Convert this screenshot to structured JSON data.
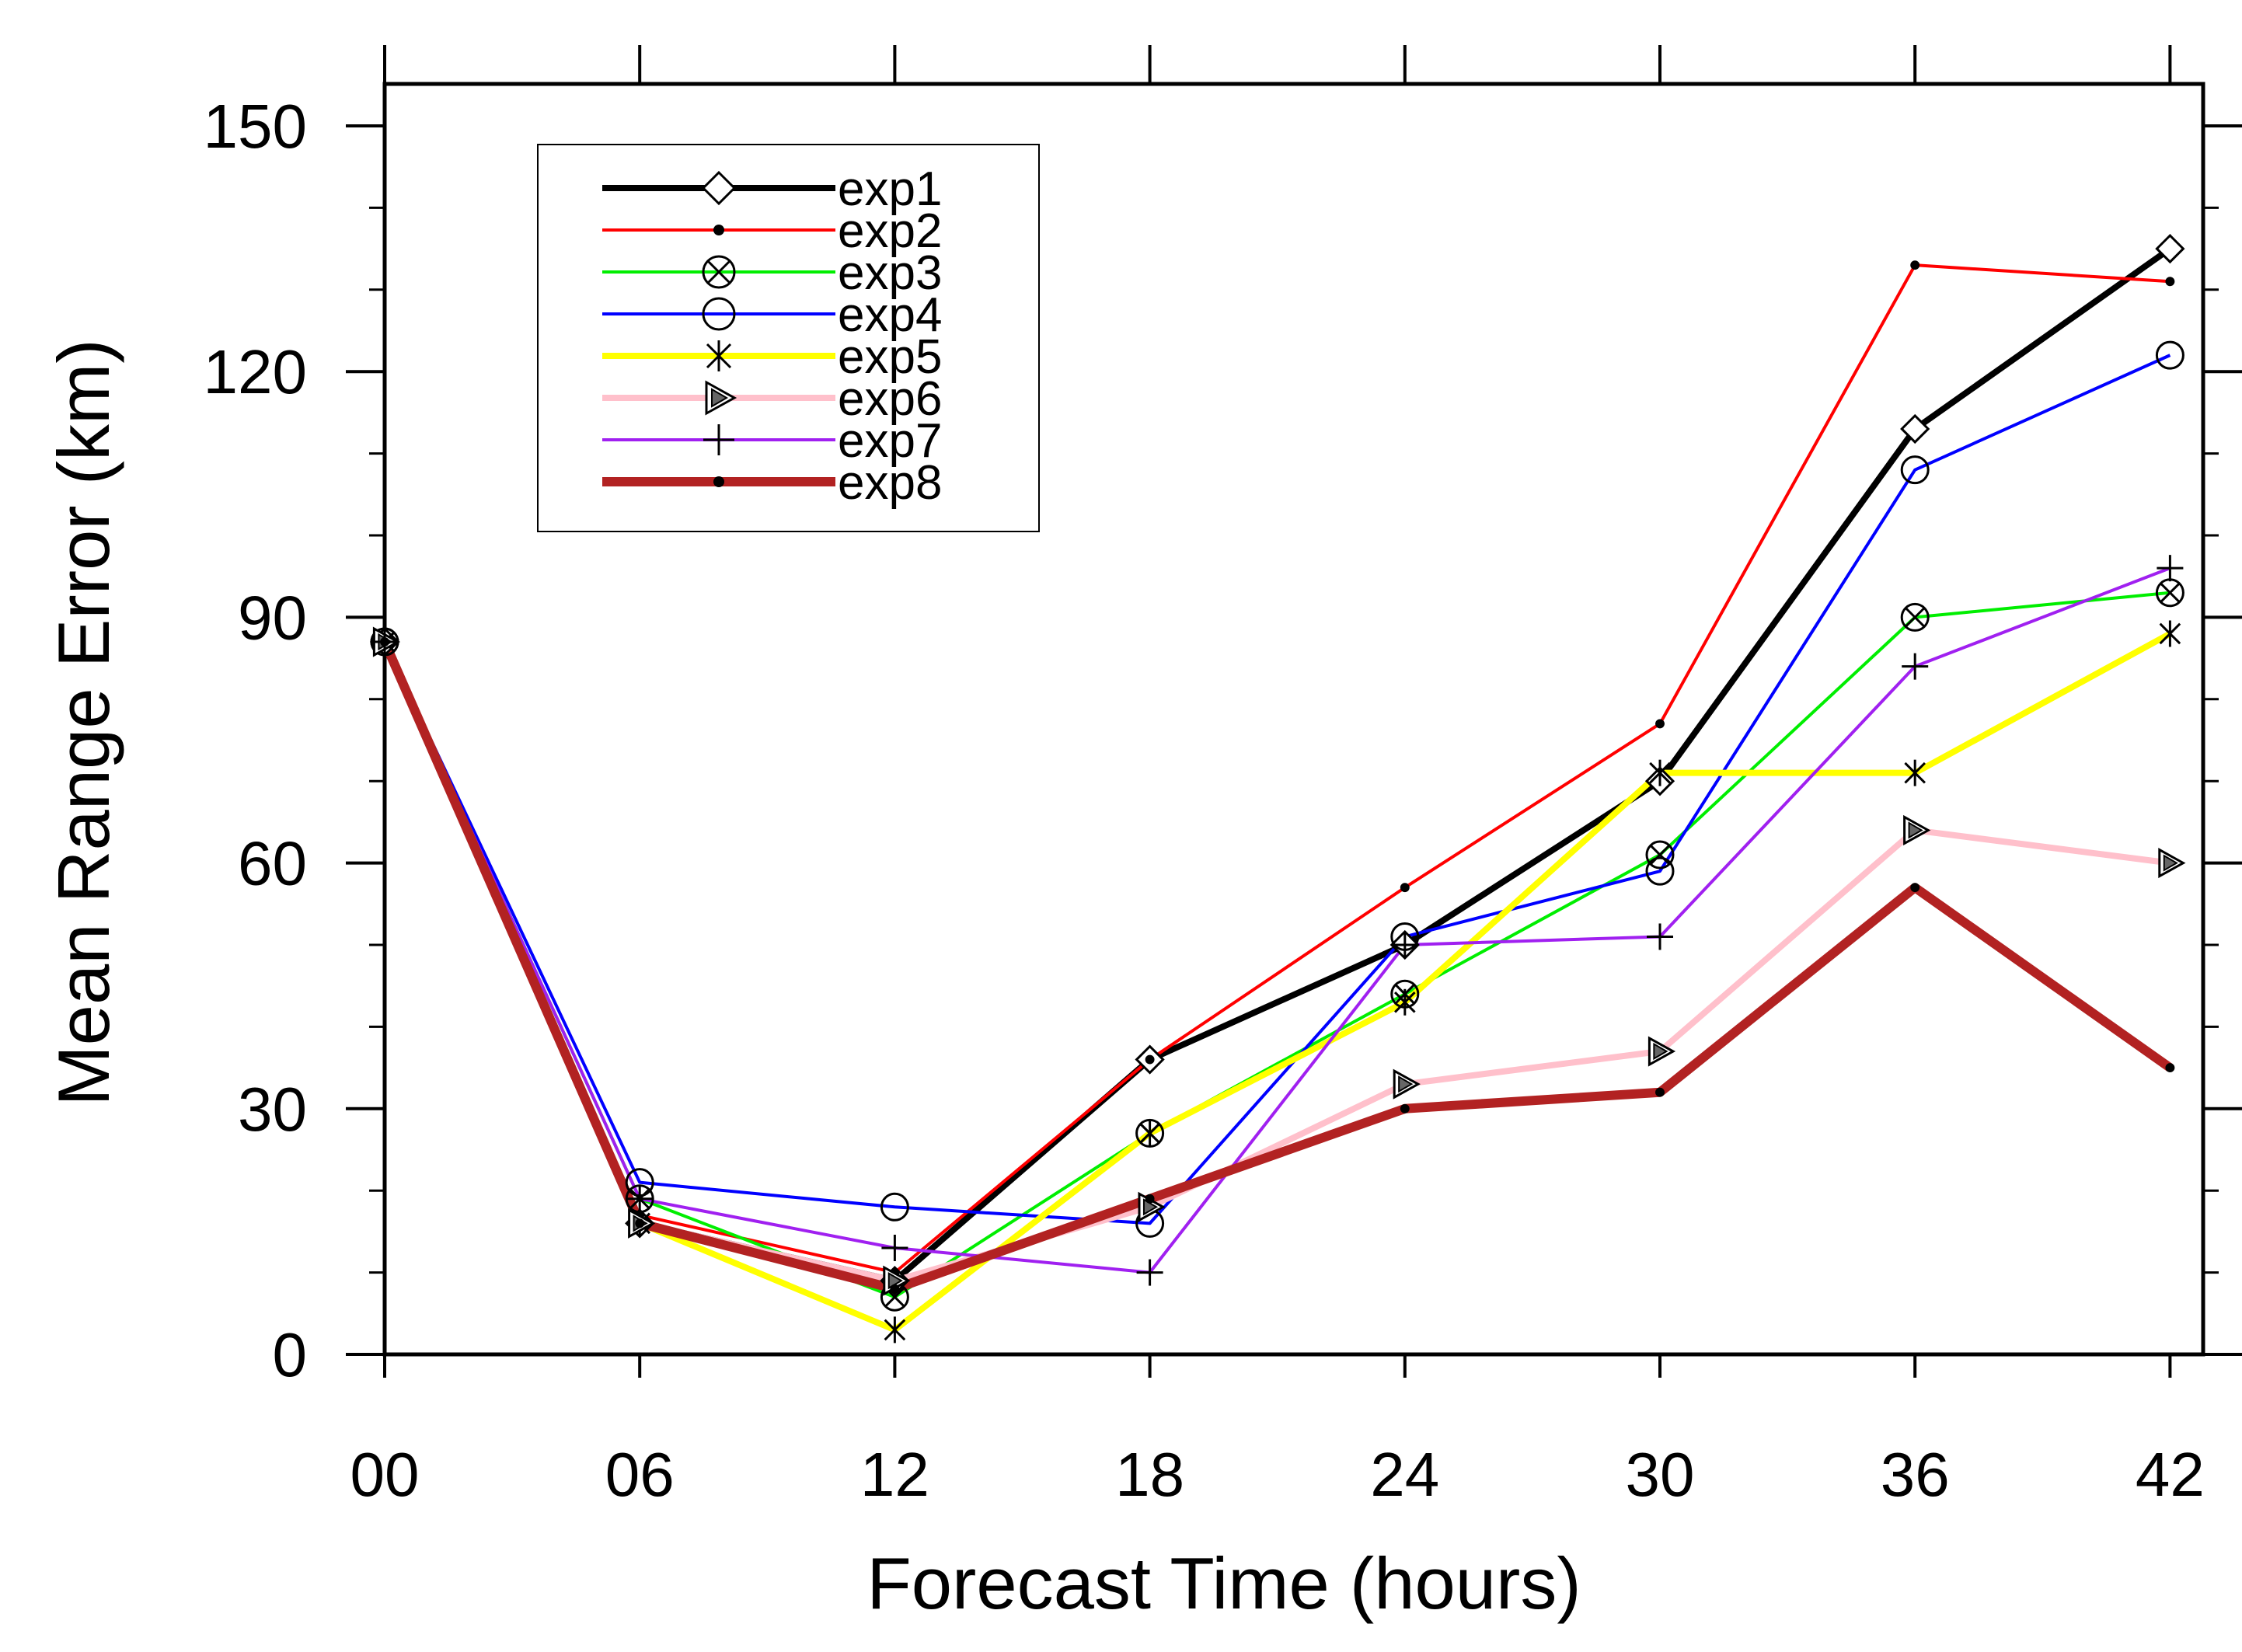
{
  "chart_data": {
    "type": "line",
    "title": "",
    "xlabel": "Forecast Time (hours)",
    "ylabel": "Mean Range Error (km)",
    "x": [
      0,
      6,
      12,
      18,
      24,
      30,
      36,
      42
    ],
    "x_tick_labels": [
      "00",
      "06",
      "12",
      "18",
      "24",
      "30",
      "36",
      "42"
    ],
    "xlim": [
      0,
      43
    ],
    "ylim": [
      0,
      150
    ],
    "y_ticks": [
      0,
      30,
      60,
      90,
      120,
      150
    ],
    "y_tick_labels": [
      "0",
      "30",
      "60",
      "90",
      "120",
      "150"
    ],
    "y_minor_step": 10,
    "grid": false,
    "legend_position": "top-left",
    "series": [
      {
        "name": "exp1",
        "color": "#000000",
        "width": "thick",
        "marker": "diamond",
        "values": [
          87,
          16,
          9,
          36,
          50,
          70,
          113,
          135
        ]
      },
      {
        "name": "exp2",
        "color": "#ff0000",
        "width": "thin",
        "marker": "dot",
        "values": [
          87,
          17,
          10,
          36,
          57,
          77,
          133,
          131
        ]
      },
      {
        "name": "exp3",
        "color": "#00ee00",
        "width": "thin",
        "marker": "circle-x",
        "values": [
          87,
          19,
          7,
          27,
          44,
          61,
          90,
          93
        ]
      },
      {
        "name": "exp4",
        "color": "#0000ff",
        "width": "thin",
        "marker": "circle",
        "values": [
          87,
          21,
          18,
          16,
          51,
          59,
          108,
          122
        ]
      },
      {
        "name": "exp5",
        "color": "#ffff00",
        "width": "thick",
        "marker": "asterisk",
        "values": [
          87,
          16,
          3,
          27,
          43,
          71,
          71,
          88
        ]
      },
      {
        "name": "exp6",
        "color": "#ffc0cb",
        "width": "thick",
        "marker": "triangle",
        "values": [
          87,
          16,
          9,
          18,
          33,
          37,
          64,
          60
        ]
      },
      {
        "name": "exp7",
        "color": "#a020f0",
        "width": "thin",
        "marker": "plus",
        "values": [
          87,
          19,
          13,
          10,
          50,
          51,
          84,
          96
        ]
      },
      {
        "name": "exp8",
        "color": "#b22222",
        "width": "xthick",
        "marker": "dot",
        "values": [
          87,
          16,
          8,
          19,
          30,
          32,
          57,
          35
        ]
      }
    ]
  }
}
